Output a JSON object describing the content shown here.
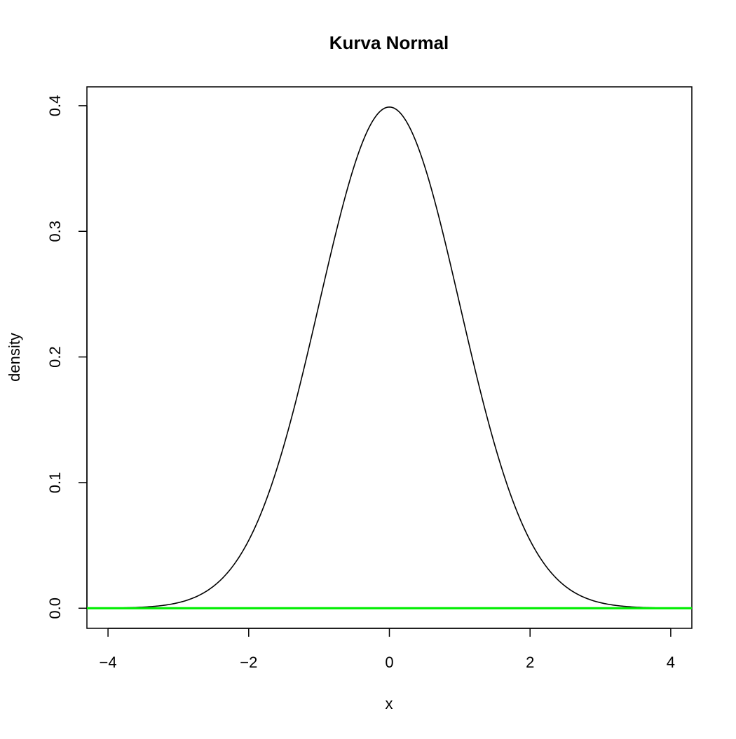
{
  "chart_data": {
    "type": "line",
    "title": "Kurva Normal",
    "xlabel": "x",
    "ylabel": "density",
    "xlim": [
      -4.3,
      4.3
    ],
    "ylim": [
      -0.016,
      0.415
    ],
    "x_ticks": [
      -4,
      -2,
      0,
      2,
      4
    ],
    "x_tick_labels": [
      "−4",
      "−2",
      "0",
      "2",
      "4"
    ],
    "y_ticks": [
      0.0,
      0.1,
      0.2,
      0.3,
      0.4
    ],
    "y_tick_labels": [
      "0.0",
      "0.1",
      "0.2",
      "0.3",
      "0.4"
    ],
    "grid": false,
    "series": [
      {
        "color": "#000000",
        "x": [
          -4.3,
          -4.0,
          -3.8,
          -3.6,
          -3.4,
          -3.2,
          -3.0,
          -2.8,
          -2.6,
          -2.4,
          -2.2,
          -2.0,
          -1.8,
          -1.6,
          -1.4,
          -1.2,
          -1.0,
          -0.8,
          -0.6,
          -0.4,
          -0.2,
          0.0,
          0.2,
          0.4,
          0.6,
          0.8,
          1.0,
          1.2,
          1.4,
          1.6,
          1.8,
          2.0,
          2.2,
          2.4,
          2.6,
          2.8,
          3.0,
          3.2,
          3.4,
          3.6,
          3.8,
          4.0,
          4.3
        ],
        "y": [
          4e-05,
          0.00013,
          0.00029,
          0.00061,
          0.00123,
          0.00238,
          0.00443,
          0.00792,
          0.01358,
          0.02239,
          0.03547,
          0.05399,
          0.07895,
          0.11092,
          0.14973,
          0.19419,
          0.24197,
          0.28969,
          0.33322,
          0.36827,
          0.39104,
          0.39894,
          0.39104,
          0.36827,
          0.33322,
          0.28969,
          0.24197,
          0.19419,
          0.14973,
          0.11092,
          0.07895,
          0.05399,
          0.03547,
          0.02239,
          0.01358,
          0.00792,
          0.00443,
          0.00238,
          0.00123,
          0.00061,
          0.00029,
          0.00013,
          4e-05
        ]
      },
      {
        "color": "#00ee00",
        "x": [
          -4.3,
          4.3
        ],
        "y": [
          0.0,
          0.0
        ]
      }
    ]
  }
}
